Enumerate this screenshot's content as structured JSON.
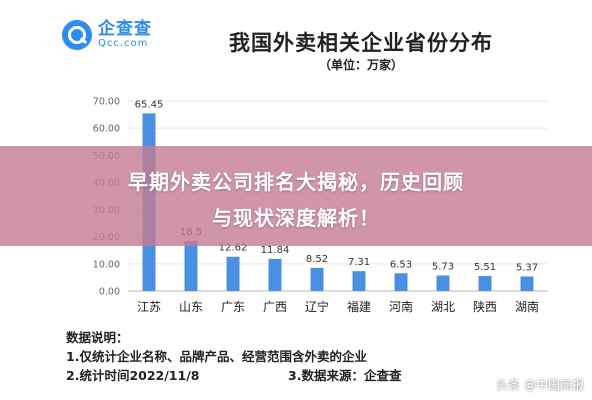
{
  "logo": {
    "cn": "企查查",
    "en": "Qcc.com"
  },
  "overlay": {
    "line1": "早期外卖公司排名大揭秘，历史回顾",
    "line2": "与现状深度解析！"
  },
  "notes": {
    "heading": "数据说明：",
    "item1": "1.仅统计企业名称、品牌产品、经营范围含外卖的企业",
    "item2": "2.统计时间2022/11/8",
    "item3": "3.数据来源：企查查"
  },
  "watermark": "头条 @中国商报",
  "colors": {
    "bar": "#4a90e2",
    "axis_text": "#666666",
    "grid": "#e6e6e6"
  },
  "chart_data": {
    "type": "bar",
    "title": "我国外卖相关企业省份分布",
    "subtitle": "（单位：万家）",
    "categories": [
      "江苏",
      "山东",
      "广东",
      "广西",
      "辽宁",
      "福建",
      "河南",
      "湖北",
      "陕西",
      "湖南"
    ],
    "values": [
      65.45,
      18.5,
      12.62,
      11.84,
      8.52,
      7.31,
      6.53,
      5.73,
      5.51,
      5.37
    ],
    "value_labels": [
      "65.45",
      "18.5",
      "12.62",
      "11.84",
      "8.52",
      "7.31",
      "6.53",
      "5.73",
      "5.51",
      "5.37"
    ],
    "y_ticks": [
      "0.00",
      "10.00",
      "20.00",
      "30.00",
      "40.00",
      "50.00",
      "60.00",
      "70.00"
    ],
    "ylim": [
      0,
      70
    ],
    "grid": true,
    "legend": "none"
  }
}
